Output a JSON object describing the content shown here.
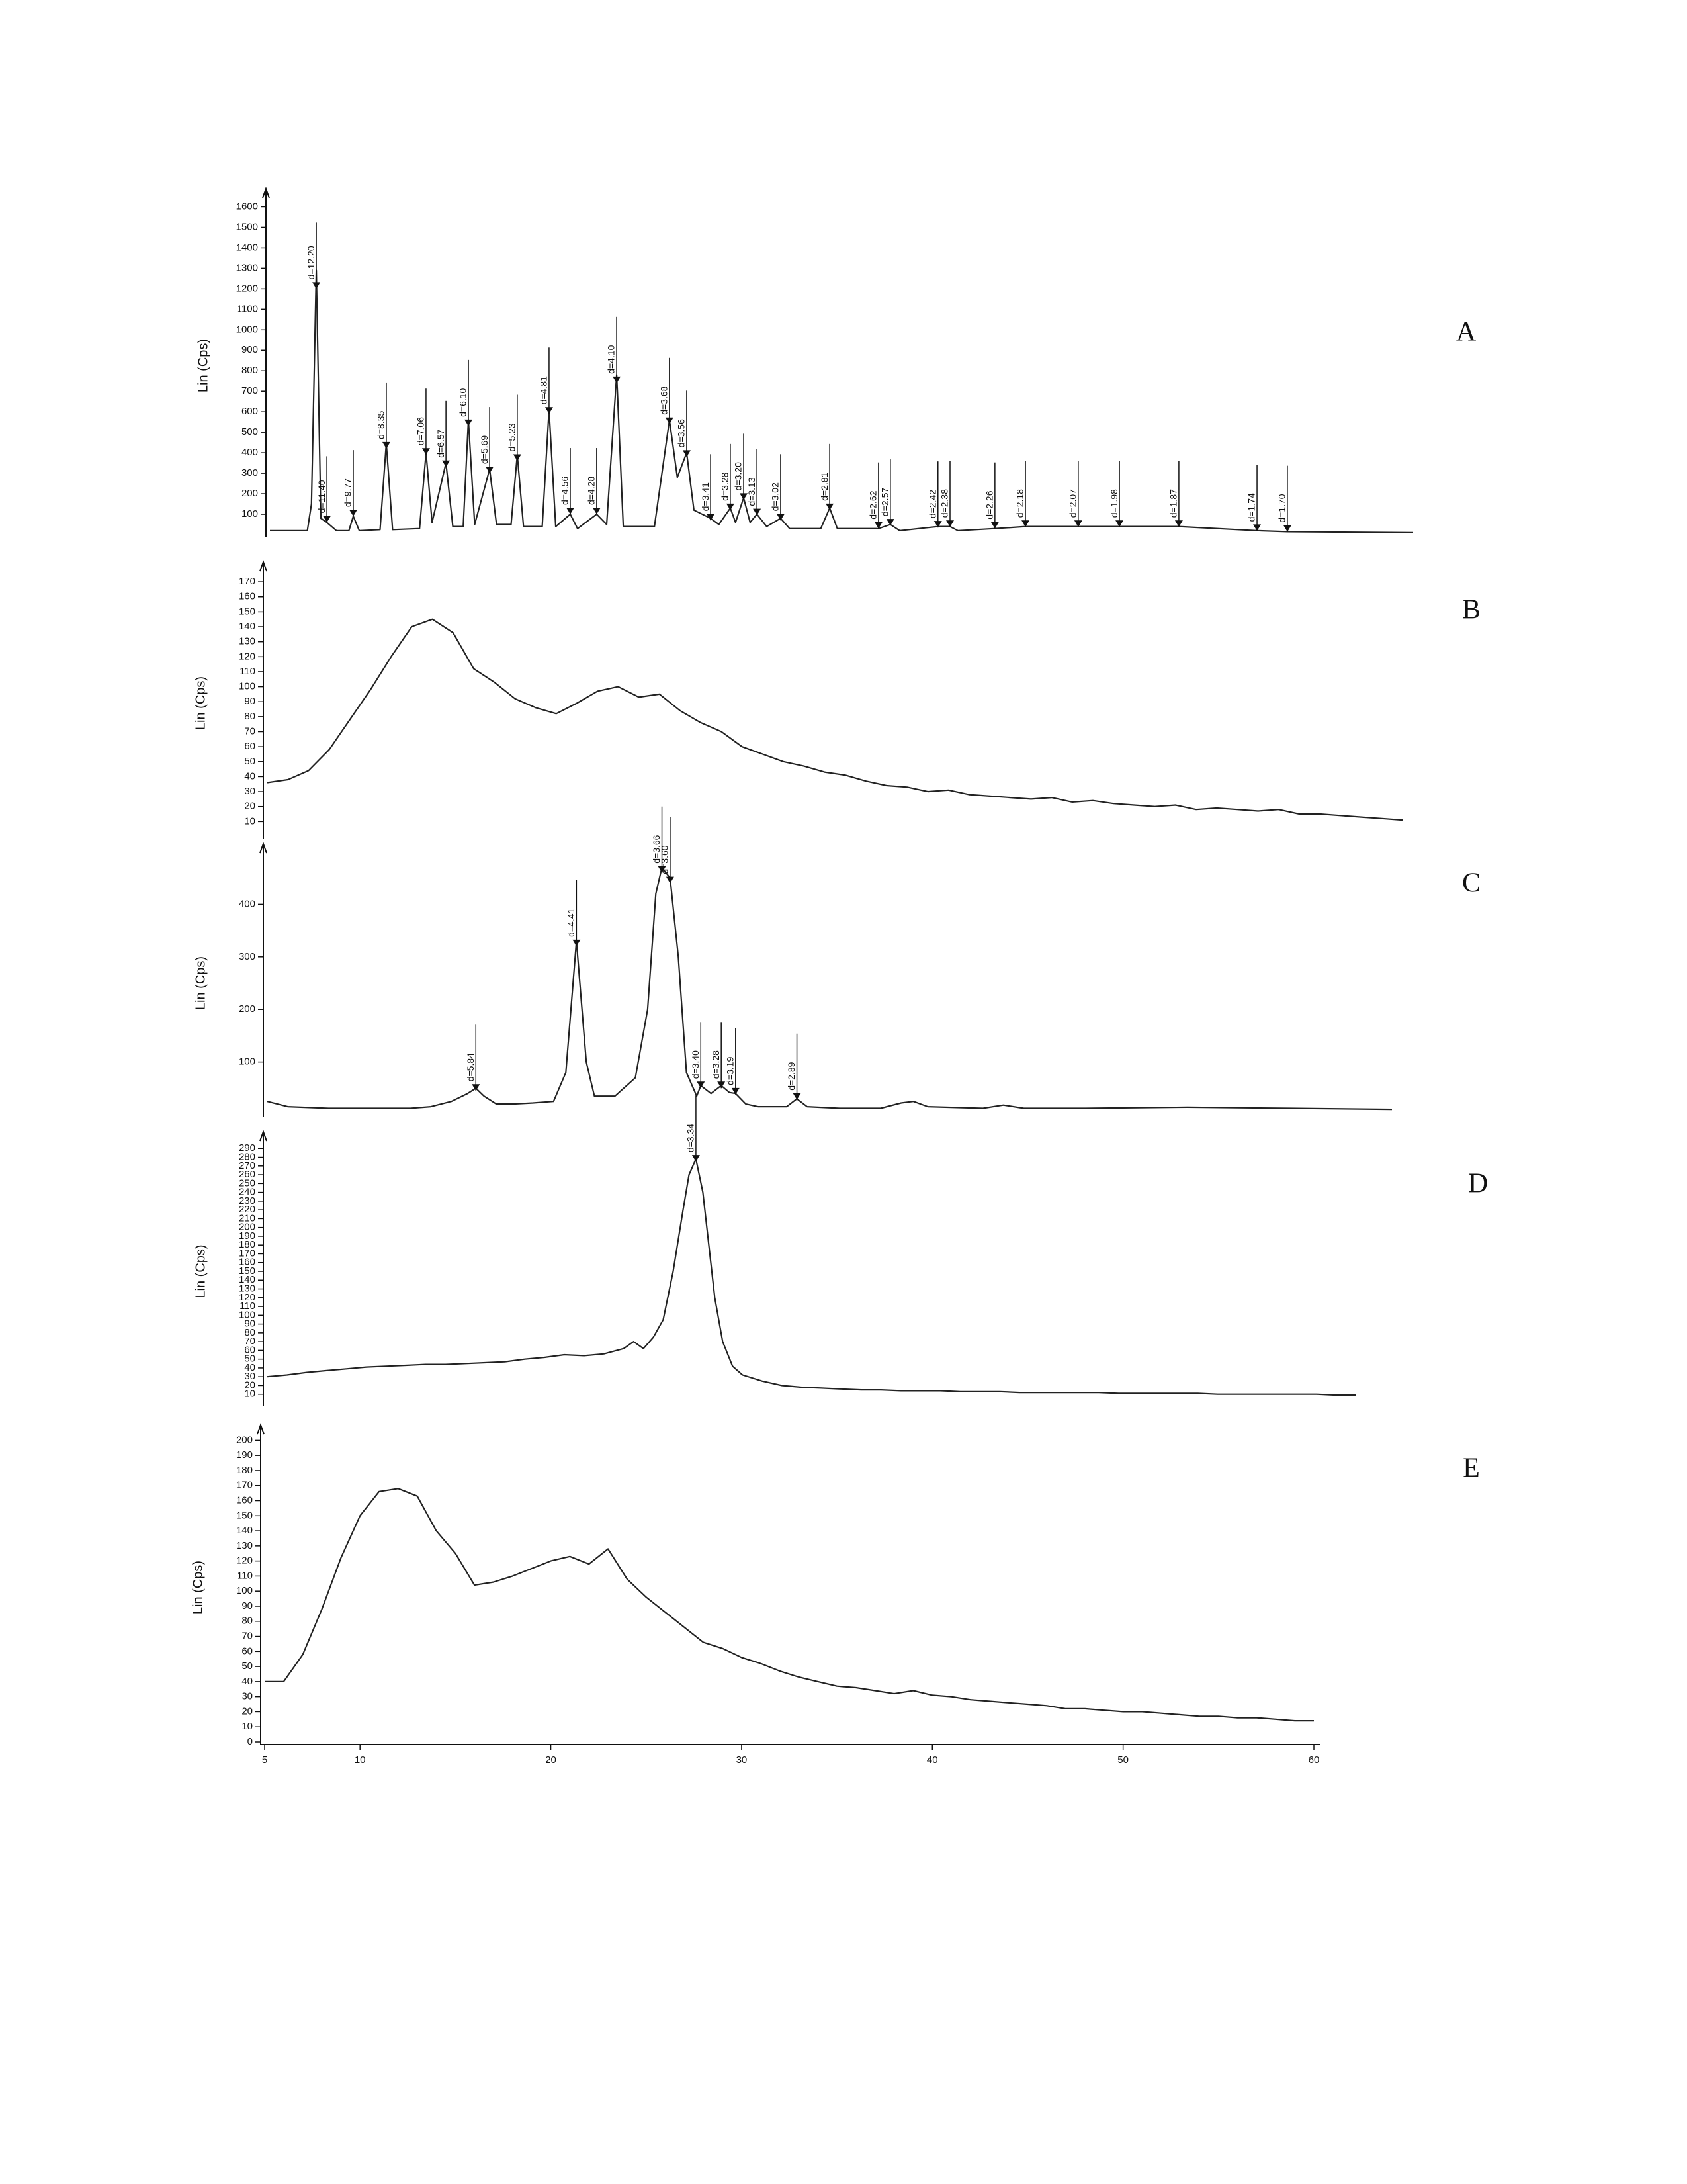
{
  "chart_data": [
    {
      "type": "line",
      "panel_label": "A",
      "y_label": "Lin (Cps)",
      "color": "#222222",
      "xlim": [
        5,
        60
      ],
      "ylim": [
        0,
        1650
      ],
      "yticks": [
        100,
        200,
        300,
        400,
        500,
        600,
        700,
        800,
        900,
        1000,
        1100,
        1200,
        1300,
        1400,
        1500,
        1600
      ],
      "x": [
        5,
        6.8,
        7.0,
        7.23,
        7.45,
        7.74,
        8.2,
        8.8,
        9.01,
        9.3,
        10.3,
        10.6,
        10.9,
        12.2,
        12.51,
        12.8,
        13.47,
        13.8,
        14.3,
        14.55,
        14.85,
        15.57,
        15.9,
        16.6,
        16.9,
        17.2,
        18.1,
        18.43,
        18.75,
        19.45,
        19.8,
        20.72,
        21.2,
        21.68,
        22.0,
        23.5,
        24.22,
        24.6,
        25.05,
        25.4,
        26.2,
        26.6,
        27.15,
        27.4,
        27.79,
        28.1,
        28.43,
        28.9,
        29.57,
        30.0,
        31.5,
        31.93,
        32.3,
        34.28,
        34.85,
        35.3,
        37.14,
        37.72,
        38.1,
        39.88,
        41.35,
        43.89,
        45.87,
        48.73,
        52.49,
        53.95,
        60
      ],
      "values": [
        20,
        20,
        150,
        1290,
        80,
        60,
        20,
        20,
        90,
        20,
        25,
        446,
        25,
        30,
        400,
        60,
        350,
        40,
        40,
        560,
        50,
        320,
        50,
        50,
        390,
        40,
        40,
        610,
        40,
        100,
        30,
        100,
        50,
        780,
        40,
        40,
        560,
        280,
        400,
        120,
        80,
        50,
        130,
        60,
        180,
        60,
        100,
        40,
        80,
        30,
        30,
        130,
        30,
        30,
        50,
        20,
        40,
        40,
        20,
        30,
        40,
        40,
        40,
        40,
        20,
        15,
        10
      ],
      "peaks": [
        {
          "label": "d=12.20",
          "x": 7.23,
          "y": 1200
        },
        {
          "label": "d=11.40",
          "x": 7.74,
          "y": 60
        },
        {
          "label": "d=9.77",
          "x": 9.01,
          "y": 90
        },
        {
          "label": "d=8.35",
          "x": 10.6,
          "y": 420
        },
        {
          "label": "d=7.06",
          "x": 12.51,
          "y": 390
        },
        {
          "label": "d=6.57",
          "x": 13.47,
          "y": 330
        },
        {
          "label": "d=6.10",
          "x": 14.55,
          "y": 530
        },
        {
          "label": "d=5.69",
          "x": 15.57,
          "y": 300
        },
        {
          "label": "d=5.23",
          "x": 16.9,
          "y": 360
        },
        {
          "label": "d=4.81",
          "x": 18.43,
          "y": 590
        },
        {
          "label": "d=4.56",
          "x": 19.45,
          "y": 100
        },
        {
          "label": "d=4.28",
          "x": 20.72,
          "y": 100
        },
        {
          "label": "d=4.10",
          "x": 21.68,
          "y": 740
        },
        {
          "label": "d=3.68",
          "x": 24.22,
          "y": 540
        },
        {
          "label": "d=3.56",
          "x": 25.05,
          "y": 380
        },
        {
          "label": "d=3.41",
          "x": 26.2,
          "y": 70
        },
        {
          "label": "d=3.28",
          "x": 27.15,
          "y": 120
        },
        {
          "label": "d=3.20",
          "x": 27.79,
          "y": 170
        },
        {
          "label": "d=3.13",
          "x": 28.43,
          "y": 95
        },
        {
          "label": "d=3.02",
          "x": 29.57,
          "y": 70
        },
        {
          "label": "d=2.81",
          "x": 31.93,
          "y": 120
        },
        {
          "label": "d=2.62",
          "x": 34.28,
          "y": 30
        },
        {
          "label": "d=2.57",
          "x": 34.85,
          "y": 45
        },
        {
          "label": "d=2.42",
          "x": 37.14,
          "y": 35
        },
        {
          "label": "d=2.38",
          "x": 37.72,
          "y": 38
        },
        {
          "label": "d=2.26",
          "x": 39.88,
          "y": 30
        },
        {
          "label": "d=2.18",
          "x": 41.35,
          "y": 38
        },
        {
          "label": "d=2.07",
          "x": 43.89,
          "y": 38
        },
        {
          "label": "d=1.98",
          "x": 45.87,
          "y": 38
        },
        {
          "label": "d=1.87",
          "x": 48.73,
          "y": 38
        },
        {
          "label": "d=1.74",
          "x": 52.49,
          "y": 18
        },
        {
          "label": "d=1.70",
          "x": 53.95,
          "y": 14
        }
      ]
    },
    {
      "type": "line",
      "panel_label": "B",
      "y_label": "Lin (Cps)",
      "color": "#222222",
      "xlim": [
        5,
        60
      ],
      "ylim": [
        0,
        178
      ],
      "yticks": [
        10,
        20,
        30,
        40,
        50,
        60,
        70,
        80,
        90,
        100,
        110,
        120,
        130,
        140,
        150,
        160,
        170
      ],
      "x": [
        5,
        6,
        7,
        8,
        9,
        10,
        11,
        12,
        13,
        14,
        15,
        16,
        17,
        18,
        19,
        20,
        21,
        22,
        23,
        24,
        25,
        26,
        27,
        28,
        29,
        30,
        31,
        32,
        33,
        34,
        35,
        36,
        37,
        38,
        39,
        40,
        41,
        42,
        43,
        44,
        45,
        46,
        47,
        48,
        49,
        50,
        51,
        52,
        53,
        54,
        55,
        56,
        57,
        58,
        59,
        60
      ],
      "values": [
        36,
        38,
        44,
        58,
        78,
        98,
        120,
        140,
        145,
        136,
        112,
        103,
        92,
        86,
        82,
        89,
        97,
        100,
        93,
        95,
        84,
        76,
        70,
        60,
        55,
        50,
        47,
        43,
        41,
        37,
        34,
        33,
        30,
        31,
        28,
        27,
        26,
        25,
        26,
        23,
        24,
        22,
        21,
        20,
        21,
        18,
        19,
        18,
        17,
        18,
        15,
        15,
        14,
        13,
        12,
        11
      ]
    },
    {
      "type": "line",
      "panel_label": "C",
      "y_label": "Lin (Cps)",
      "color": "#222222",
      "xlim": [
        5,
        60
      ],
      "ylim": [
        0,
        500
      ],
      "yticks": [
        100,
        200,
        300,
        400
      ],
      "x": [
        5,
        6,
        8,
        10,
        12,
        13,
        14,
        14.8,
        15.2,
        15.6,
        16.2,
        17,
        18,
        19,
        19.6,
        20.12,
        20.6,
        21,
        22,
        23,
        23.6,
        24.0,
        24.3,
        24.7,
        25.1,
        25.5,
        26,
        26.2,
        26.7,
        27.2,
        27.6,
        27.9,
        28.4,
        29,
        30.4,
        30.9,
        31.4,
        33,
        35,
        36,
        36.6,
        37.3,
        40,
        41,
        42,
        45,
        50,
        55,
        60
      ],
      "values": [
        25,
        15,
        12,
        12,
        12,
        15,
        25,
        40,
        50,
        35,
        20,
        20,
        22,
        25,
        80,
        330,
        100,
        35,
        35,
        70,
        200,
        420,
        470,
        450,
        300,
        80,
        35,
        55,
        40,
        55,
        42,
        40,
        20,
        15,
        15,
        30,
        15,
        12,
        12,
        22,
        25,
        15,
        12,
        18,
        12,
        12,
        14,
        12,
        10
      ],
      "peaks": [
        {
          "label": "d=5.84",
          "x": 15.2,
          "y": 45
        },
        {
          "label": "d=4.41",
          "x": 20.12,
          "y": 320
        },
        {
          "label": "d=3.66",
          "x": 24.3,
          "y": 460
        },
        {
          "label": "d=3.60",
          "x": 24.7,
          "y": 440
        },
        {
          "label": "d=3.40",
          "x": 26.2,
          "y": 50
        },
        {
          "label": "d=3.28",
          "x": 27.2,
          "y": 50
        },
        {
          "label": "d=3.19",
          "x": 27.9,
          "y": 38
        },
        {
          "label": "d=2.89",
          "x": 30.9,
          "y": 28
        }
      ]
    },
    {
      "type": "line",
      "panel_label": "D",
      "y_label": "Lin (Cps)",
      "color": "#222222",
      "xlim": [
        5,
        60
      ],
      "ylim": [
        0,
        300
      ],
      "yticks": [
        10,
        20,
        30,
        40,
        50,
        60,
        70,
        80,
        90,
        100,
        110,
        120,
        130,
        140,
        150,
        160,
        170,
        180,
        190,
        200,
        210,
        220,
        230,
        240,
        250,
        260,
        270,
        280,
        290
      ],
      "x": [
        5,
        6,
        7,
        8,
        9,
        10,
        11,
        12,
        13,
        14,
        15,
        16,
        17,
        18,
        19,
        20,
        21,
        22,
        23,
        23.5,
        24,
        24.5,
        25,
        25.5,
        26,
        26.3,
        26.65,
        27,
        27.3,
        27.6,
        28,
        28.5,
        29,
        30,
        31,
        32,
        33,
        34,
        35,
        36,
        37,
        38,
        39,
        40,
        41,
        42,
        43,
        44,
        45,
        46,
        47,
        48,
        49,
        50,
        51,
        52,
        53,
        54,
        55,
        56,
        57,
        58,
        59,
        60
      ],
      "values": [
        30,
        32,
        35,
        37,
        39,
        41,
        42,
        43,
        44,
        44,
        45,
        46,
        47,
        50,
        52,
        55,
        54,
        56,
        62,
        70,
        62,
        75,
        95,
        150,
        220,
        260,
        278,
        240,
        180,
        120,
        70,
        42,
        32,
        25,
        20,
        18,
        17,
        16,
        15,
        15,
        14,
        14,
        14,
        13,
        13,
        13,
        12,
        12,
        12,
        12,
        12,
        11,
        11,
        11,
        11,
        11,
        10,
        10,
        10,
        10,
        10,
        10,
        9,
        9
      ],
      "peaks": [
        {
          "label": "d=3.34",
          "x": 26.65,
          "y": 275
        }
      ]
    },
    {
      "type": "line",
      "panel_label": "E",
      "y_label": "Lin (Cps)",
      "color": "#222222",
      "xlim": [
        5,
        60
      ],
      "ylim": [
        0,
        205
      ],
      "yticks": [
        0,
        10,
        20,
        30,
        40,
        50,
        60,
        70,
        80,
        90,
        100,
        110,
        120,
        130,
        140,
        150,
        160,
        170,
        180,
        190,
        200
      ],
      "xticks": [
        5,
        10,
        20,
        30,
        40,
        50,
        60
      ],
      "x": [
        5,
        6,
        7,
        8,
        9,
        10,
        11,
        12,
        13,
        14,
        15,
        16,
        17,
        18,
        19,
        20,
        21,
        22,
        23,
        24,
        25,
        26,
        27,
        28,
        29,
        30,
        31,
        32,
        33,
        34,
        35,
        36,
        37,
        38,
        39,
        40,
        41,
        42,
        43,
        44,
        45,
        46,
        47,
        48,
        49,
        50,
        51,
        52,
        53,
        54,
        55,
        56,
        57,
        58,
        59,
        60
      ],
      "values": [
        40,
        40,
        58,
        88,
        122,
        150,
        166,
        168,
        163,
        140,
        125,
        104,
        106,
        110,
        115,
        120,
        123,
        118,
        128,
        108,
        96,
        86,
        76,
        66,
        62,
        56,
        52,
        47,
        43,
        40,
        37,
        36,
        34,
        32,
        34,
        31,
        30,
        28,
        27,
        26,
        25,
        24,
        22,
        22,
        21,
        20,
        20,
        19,
        18,
        17,
        17,
        16,
        16,
        15,
        14,
        14
      ]
    }
  ]
}
